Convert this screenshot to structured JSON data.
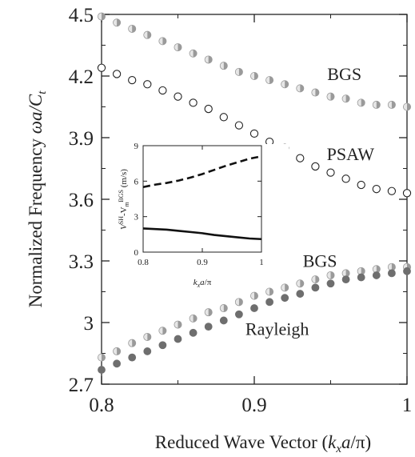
{
  "chart_data": [
    {
      "type": "scatter",
      "ylabel": "Normalized Frequency",
      "ylabel_symbol": "ωa/C",
      "ylabel_sub": "t",
      "xlabel_prefix": "Reduced Wave Vector (",
      "xlabel_k": "k",
      "xlabel_sub": "x",
      "xlabel_rest": "a/π)",
      "xlim": [
        0.8,
        1.0
      ],
      "ylim": [
        2.7,
        4.5
      ],
      "x_ticks": [
        0.8,
        0.9,
        1.0
      ],
      "x_tick_labels": [
        "0.8",
        "0.9",
        "1"
      ],
      "y_ticks": [
        2.7,
        3.0,
        3.3,
        3.6,
        3.9,
        4.2,
        4.5
      ],
      "y_tick_labels": [
        "2.7",
        "3",
        "3.3",
        "3.6",
        "3.9",
        "4.2",
        "4.5"
      ],
      "grid": false,
      "series": [
        {
          "name": "BGS",
          "marker": "half-filled-circle",
          "color": "#9a9a9a",
          "x": [
            0.8,
            0.81,
            0.82,
            0.83,
            0.84,
            0.85,
            0.86,
            0.87,
            0.88,
            0.89,
            0.9,
            0.91,
            0.92,
            0.93,
            0.94,
            0.95,
            0.96,
            0.97,
            0.98,
            0.99,
            1.0
          ],
          "y": [
            4.49,
            4.46,
            4.43,
            4.4,
            4.37,
            4.34,
            4.31,
            4.28,
            4.25,
            4.22,
            4.2,
            4.18,
            4.16,
            4.14,
            4.12,
            4.1,
            4.09,
            4.07,
            4.06,
            4.06,
            4.05
          ]
        },
        {
          "name": "PSAW",
          "marker": "open-circle",
          "color": "#222222",
          "x": [
            0.8,
            0.81,
            0.82,
            0.83,
            0.84,
            0.85,
            0.86,
            0.87,
            0.88,
            0.89,
            0.9,
            0.91,
            0.92,
            0.93,
            0.94,
            0.95,
            0.96,
            0.97,
            0.98,
            0.99,
            1.0
          ],
          "y": [
            4.24,
            4.21,
            4.18,
            4.16,
            4.13,
            4.1,
            4.07,
            4.04,
            4.0,
            3.96,
            3.92,
            3.88,
            3.85,
            3.8,
            3.76,
            3.73,
            3.7,
            3.67,
            3.65,
            3.64,
            3.63
          ]
        },
        {
          "name": "BGS",
          "marker": "half-filled-circle",
          "color": "#9a9a9a",
          "x": [
            0.8,
            0.81,
            0.82,
            0.83,
            0.84,
            0.85,
            0.86,
            0.87,
            0.88,
            0.89,
            0.9,
            0.91,
            0.92,
            0.93,
            0.94,
            0.95,
            0.96,
            0.97,
            0.98,
            0.99,
            1.0
          ],
          "y": [
            2.83,
            2.86,
            2.9,
            2.93,
            2.96,
            2.99,
            3.02,
            3.05,
            3.07,
            3.1,
            3.13,
            3.15,
            3.17,
            3.19,
            3.21,
            3.23,
            3.24,
            3.25,
            3.26,
            3.27,
            3.27
          ]
        },
        {
          "name": "Rayleigh",
          "marker": "filled-circle",
          "color": "#6e6e6e",
          "x": [
            0.8,
            0.81,
            0.82,
            0.83,
            0.84,
            0.85,
            0.86,
            0.87,
            0.88,
            0.89,
            0.9,
            0.91,
            0.92,
            0.93,
            0.94,
            0.95,
            0.96,
            0.97,
            0.98,
            0.99,
            1.0
          ],
          "y": [
            2.77,
            2.8,
            2.83,
            2.86,
            2.89,
            2.92,
            2.95,
            2.98,
            3.01,
            3.04,
            3.07,
            3.1,
            3.12,
            3.14,
            3.17,
            3.19,
            3.21,
            3.22,
            3.23,
            3.24,
            3.25
          ]
        }
      ],
      "annotations": [
        {
          "text": "BGS",
          "x": 0.959,
          "y": 4.18
        },
        {
          "text": "PSAW",
          "x": 0.963,
          "y": 3.79
        },
        {
          "text": "BGS",
          "x": 0.943,
          "y": 3.27
        },
        {
          "text": "Rayleigh",
          "x": 0.915,
          "y": 2.94
        }
      ]
    },
    {
      "type": "line",
      "inset": true,
      "xlim": [
        0.8,
        1.0
      ],
      "ylim": [
        0,
        9
      ],
      "x_ticks": [
        0.8,
        0.9,
        1.0
      ],
      "x_tick_labels": [
        "0.8",
        "0.9",
        "1"
      ],
      "y_ticks": [
        0,
        3,
        6,
        9
      ],
      "y_tick_labels": [
        "0",
        "3",
        "6",
        "9"
      ],
      "ylabel_v1": "V",
      "ylabel_sup1": "SH",
      "ylabel_mid": "-V",
      "ylabel_sub2": "m",
      "ylabel_sup2": "BGS",
      "ylabel_unit": " (m/s)",
      "xlabel_k": "k",
      "xlabel_sub": "x",
      "xlabel_rest": "a/π",
      "series": [
        {
          "style": "dashed",
          "x": [
            0.8,
            0.82,
            0.84,
            0.86,
            0.88,
            0.9,
            0.92,
            0.94,
            0.96,
            0.98,
            1.0
          ],
          "y": [
            5.5,
            5.7,
            5.85,
            6.05,
            6.3,
            6.6,
            6.95,
            7.3,
            7.6,
            7.9,
            8.1
          ]
        },
        {
          "style": "solid",
          "x": [
            0.8,
            0.82,
            0.84,
            0.86,
            0.88,
            0.9,
            0.92,
            0.94,
            0.96,
            0.98,
            1.0
          ],
          "y": [
            2.0,
            1.95,
            1.9,
            1.8,
            1.7,
            1.6,
            1.45,
            1.35,
            1.25,
            1.15,
            1.1
          ]
        }
      ]
    }
  ]
}
